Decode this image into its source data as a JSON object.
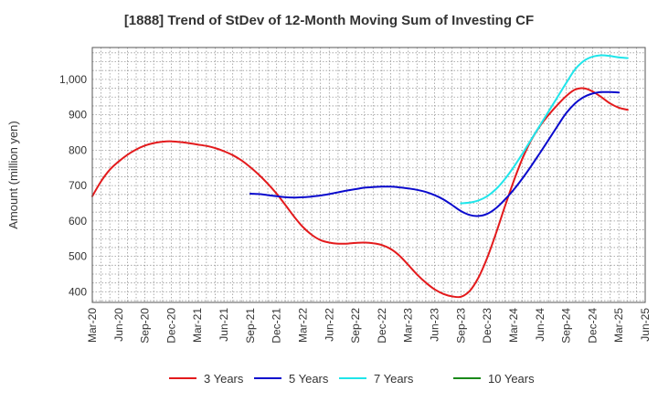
{
  "chart_data": {
    "type": "line",
    "title": "[1888]  Trend of StDev of 12-Month Moving Sum of Investing CF",
    "xlabel": "",
    "ylabel": "Amount (million yen)",
    "ylim": [
      370,
      1090
    ],
    "yticks": [
      400,
      500,
      600,
      700,
      800,
      900,
      1000
    ],
    "ytick_labels": [
      "400",
      "500",
      "600",
      "700",
      "800",
      "900",
      "1,000"
    ],
    "xlim": [
      "2020-03",
      "2025-06"
    ],
    "xticks": [
      "2020-03",
      "2020-06",
      "2020-09",
      "2020-12",
      "2021-03",
      "2021-06",
      "2021-09",
      "2021-12",
      "2022-03",
      "2022-06",
      "2022-09",
      "2022-12",
      "2023-03",
      "2023-06",
      "2023-09",
      "2023-12",
      "2024-03",
      "2024-06",
      "2024-09",
      "2024-12",
      "2025-03",
      "2025-06"
    ],
    "xtick_labels": [
      "Mar-20",
      "Jun-20",
      "Sep-20",
      "Dec-20",
      "Mar-21",
      "Jun-21",
      "Sep-21",
      "Dec-21",
      "Mar-22",
      "Jun-22",
      "Sep-22",
      "Dec-22",
      "Mar-23",
      "Jun-23",
      "Sep-23",
      "Dec-23",
      "Mar-24",
      "Jun-24",
      "Sep-24",
      "Dec-24",
      "Mar-25",
      "Jun-25"
    ],
    "grid": true,
    "legend_position": "bottom",
    "series": [
      {
        "name": "3 Years",
        "color": "#e31a1c",
        "points": [
          [
            "2020-03",
            670
          ],
          [
            "2020-04",
            712
          ],
          [
            "2020-05",
            745
          ],
          [
            "2020-06",
            768
          ],
          [
            "2020-07",
            787
          ],
          [
            "2020-08",
            802
          ],
          [
            "2020-09",
            813
          ],
          [
            "2020-10",
            820
          ],
          [
            "2020-11",
            824
          ],
          [
            "2020-12",
            825
          ],
          [
            "2021-01",
            823
          ],
          [
            "2021-02",
            820
          ],
          [
            "2021-03",
            816
          ],
          [
            "2021-04",
            812
          ],
          [
            "2021-05",
            806
          ],
          [
            "2021-06",
            797
          ],
          [
            "2021-07",
            786
          ],
          [
            "2021-08",
            771
          ],
          [
            "2021-09",
            752
          ],
          [
            "2021-10",
            730
          ],
          [
            "2021-11",
            705
          ],
          [
            "2021-12",
            677
          ],
          [
            "2022-01",
            645
          ],
          [
            "2022-02",
            612
          ],
          [
            "2022-03",
            583
          ],
          [
            "2022-04",
            561
          ],
          [
            "2022-05",
            546
          ],
          [
            "2022-06",
            539
          ],
          [
            "2022-07",
            536
          ],
          [
            "2022-08",
            536
          ],
          [
            "2022-09",
            538
          ],
          [
            "2022-10",
            539
          ],
          [
            "2022-11",
            537
          ],
          [
            "2022-12",
            532
          ],
          [
            "2023-01",
            521
          ],
          [
            "2023-02",
            502
          ],
          [
            "2023-03",
            476
          ],
          [
            "2023-04",
            449
          ],
          [
            "2023-05",
            426
          ],
          [
            "2023-06",
            407
          ],
          [
            "2023-07",
            394
          ],
          [
            "2023-08",
            387
          ],
          [
            "2023-09",
            386
          ],
          [
            "2023-10",
            402
          ],
          [
            "2023-11",
            440
          ],
          [
            "2023-12",
            496
          ],
          [
            "2024-01",
            565
          ],
          [
            "2024-02",
            640
          ],
          [
            "2024-03",
            712
          ],
          [
            "2024-04",
            776
          ],
          [
            "2024-05",
            828
          ],
          [
            "2024-06",
            868
          ],
          [
            "2024-07",
            900
          ],
          [
            "2024-08",
            928
          ],
          [
            "2024-09",
            953
          ],
          [
            "2024-10",
            971
          ],
          [
            "2024-11",
            975
          ],
          [
            "2024-12",
            966
          ],
          [
            "2025-01",
            950
          ],
          [
            "2025-02",
            932
          ],
          [
            "2025-03",
            920
          ],
          [
            "2025-04",
            914
          ]
        ]
      },
      {
        "name": "5 Years",
        "color": "#0a0acd",
        "points": [
          [
            "2021-09",
            677
          ],
          [
            "2021-10",
            676
          ],
          [
            "2021-11",
            673
          ],
          [
            "2021-12",
            670
          ],
          [
            "2022-01",
            667
          ],
          [
            "2022-02",
            666
          ],
          [
            "2022-03",
            667
          ],
          [
            "2022-04",
            669
          ],
          [
            "2022-05",
            672
          ],
          [
            "2022-06",
            676
          ],
          [
            "2022-07",
            681
          ],
          [
            "2022-08",
            686
          ],
          [
            "2022-09",
            690
          ],
          [
            "2022-10",
            694
          ],
          [
            "2022-11",
            696
          ],
          [
            "2022-12",
            697
          ],
          [
            "2023-01",
            697
          ],
          [
            "2023-02",
            695
          ],
          [
            "2023-03",
            692
          ],
          [
            "2023-04",
            688
          ],
          [
            "2023-05",
            682
          ],
          [
            "2023-06",
            673
          ],
          [
            "2023-07",
            661
          ],
          [
            "2023-08",
            645
          ],
          [
            "2023-09",
            628
          ],
          [
            "2023-10",
            617
          ],
          [
            "2023-11",
            614
          ],
          [
            "2023-12",
            620
          ],
          [
            "2024-01",
            636
          ],
          [
            "2024-02",
            660
          ],
          [
            "2024-03",
            688
          ],
          [
            "2024-04",
            720
          ],
          [
            "2024-05",
            755
          ],
          [
            "2024-06",
            792
          ],
          [
            "2024-07",
            830
          ],
          [
            "2024-08",
            868
          ],
          [
            "2024-09",
            905
          ],
          [
            "2024-10",
            932
          ],
          [
            "2024-11",
            950
          ],
          [
            "2024-12",
            960
          ],
          [
            "2025-01",
            964
          ],
          [
            "2025-02",
            964
          ],
          [
            "2025-03",
            963
          ]
        ]
      },
      {
        "name": "7 Years",
        "color": "#1fe5ea",
        "points": [
          [
            "2023-09",
            650
          ],
          [
            "2023-10",
            652
          ],
          [
            "2023-11",
            658
          ],
          [
            "2023-12",
            670
          ],
          [
            "2024-01",
            690
          ],
          [
            "2024-02",
            718
          ],
          [
            "2024-03",
            752
          ],
          [
            "2024-04",
            790
          ],
          [
            "2024-05",
            830
          ],
          [
            "2024-06",
            870
          ],
          [
            "2024-07",
            910
          ],
          [
            "2024-08",
            950
          ],
          [
            "2024-09",
            990
          ],
          [
            "2024-10",
            1028
          ],
          [
            "2024-11",
            1052
          ],
          [
            "2024-12",
            1064
          ],
          [
            "2025-01",
            1068
          ],
          [
            "2025-02",
            1066
          ],
          [
            "2025-03",
            1062
          ],
          [
            "2025-04",
            1060
          ]
        ]
      },
      {
        "name": "10 Years",
        "color": "#1a8a1a",
        "points": []
      }
    ]
  }
}
